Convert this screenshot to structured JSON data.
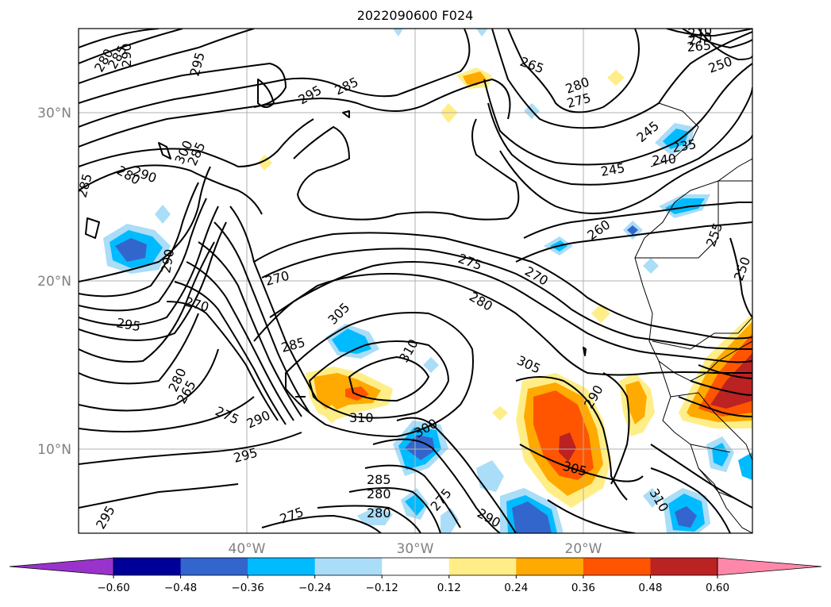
{
  "title": "2022090600 F024",
  "lat_labels": [
    "30°N",
    "20°N",
    "10°N"
  ],
  "lon_labels": [
    "40°W",
    "30°W",
    "20°W"
  ],
  "colorbar": {
    "tick_labels": [
      "−0.60",
      "−0.48",
      "−0.36",
      "−0.24",
      "−0.12",
      "0.12",
      "0.24",
      "0.36",
      "0.48",
      "0.60"
    ],
    "colors": [
      "#9933cc",
      "#000099",
      "#3366cc",
      "#00bbff",
      "#aaddf7",
      "#ffffff",
      "#ffee88",
      "#ffaa00",
      "#ff5500",
      "#bb2222",
      "#ff88aa"
    ]
  },
  "contour_labels": [
    "280",
    "285",
    "290",
    "295",
    "295",
    "285",
    "265",
    "280",
    "275",
    "270",
    "270",
    "265",
    "250",
    "285",
    "280",
    "290",
    "300",
    "285",
    "245",
    "235",
    "240",
    "245",
    "260",
    "255",
    "250",
    "270",
    "275",
    "270",
    "280",
    "295",
    "305",
    "310",
    "285",
    "290",
    "305",
    "295",
    "270",
    "280",
    "275",
    "290",
    "300",
    "310",
    "290",
    "295",
    "285",
    "280",
    "275",
    "280",
    "275",
    "290",
    "305",
    "310",
    "265"
  ]
}
